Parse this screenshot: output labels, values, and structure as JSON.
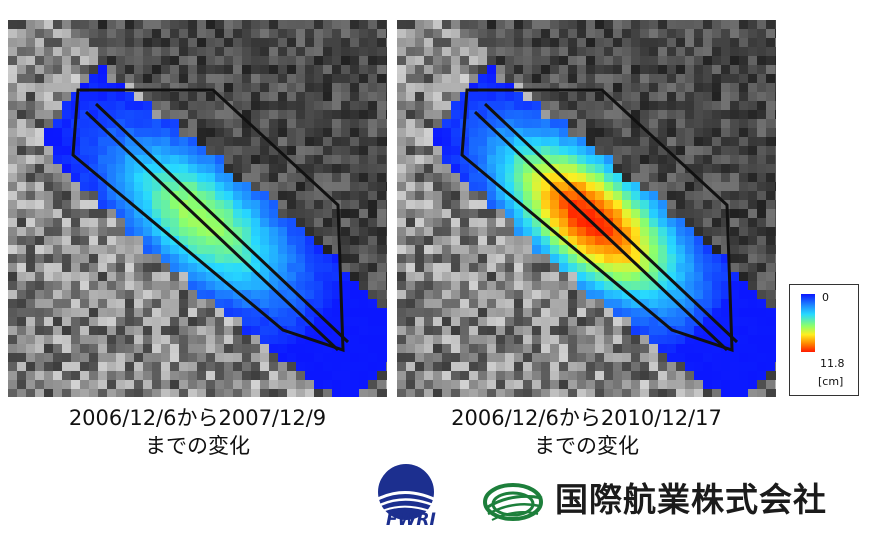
{
  "panels": [
    {
      "caption_line1": "2006/12/6から2007/12/9",
      "caption_line2": "までの変化",
      "max_level": 0.58
    },
    {
      "caption_line1": "2006/12/6から2010/12/17",
      "caption_line2": "までの変化",
      "max_level": 1.0
    }
  ],
  "legend": {
    "min_label": "0",
    "max_label": "11.8",
    "unit_label": "[cm]"
  },
  "logos": {
    "company_name": "国際航業株式会社",
    "fwri_text": "FWRI"
  },
  "colors": {
    "outline": "#111111",
    "zero": "#0b17ff",
    "max": "#ff1a00"
  }
}
